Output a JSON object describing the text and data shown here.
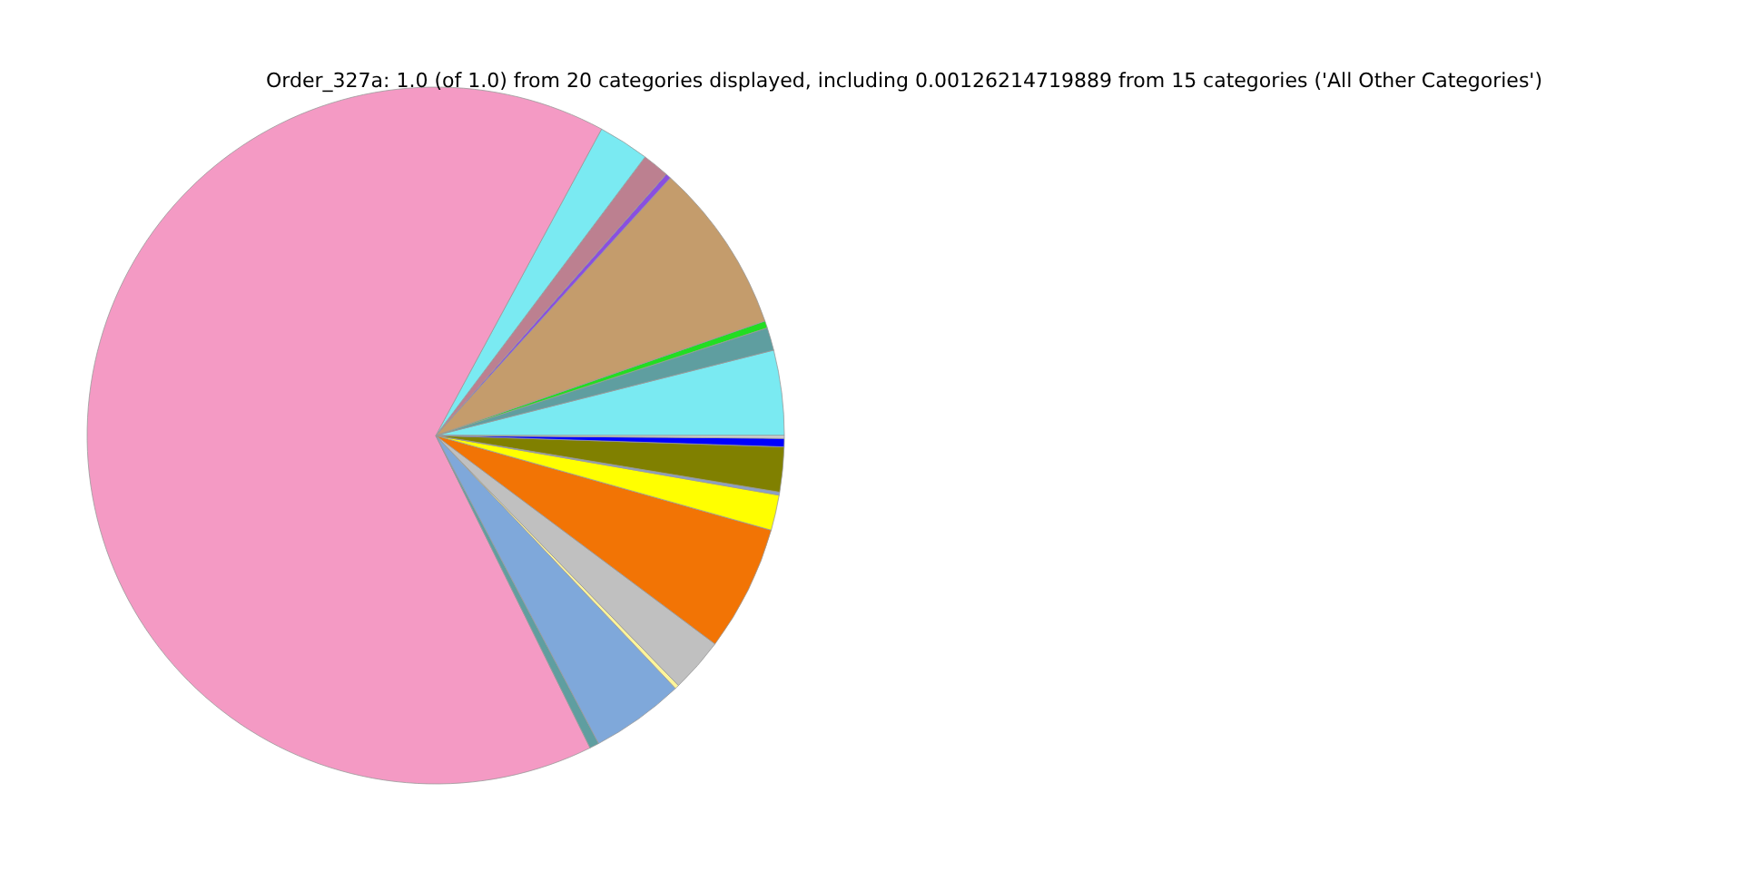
{
  "chart_data": {
    "type": "pie",
    "title": "Order_327a: 1.0 (of 1.0) from 20 categories displayed, including 0.00126214719889 from 15 categories ('All Other Categories')",
    "categories": [
      null,
      null,
      null,
      null,
      null,
      null,
      null,
      null,
      null,
      null,
      null,
      null,
      null,
      null,
      null,
      null,
      null,
      null
    ],
    "values": [
      3.94,
      1.06,
      0.33,
      7.92,
      0.25,
      1.25,
      2.36,
      65.19,
      0.44,
      4.33,
      0.19,
      2.53,
      5.83,
      1.64,
      0.14,
      2.08,
      0.39,
      0.13
    ],
    "colors": [
      "#7aeaf2",
      "#5f9ea0",
      "#22dd22",
      "#c49c6c",
      "#8a4fe0",
      "#bc8090",
      "#7aeaf2",
      "#f49ac4",
      "#5f9ea0",
      "#7fa8da",
      "#fff59a",
      "#c0c0c0",
      "#f27405",
      "#ffff00",
      "#8aa0c8",
      "#808000",
      "#0000ff",
      "#d3d3d3"
    ]
  }
}
